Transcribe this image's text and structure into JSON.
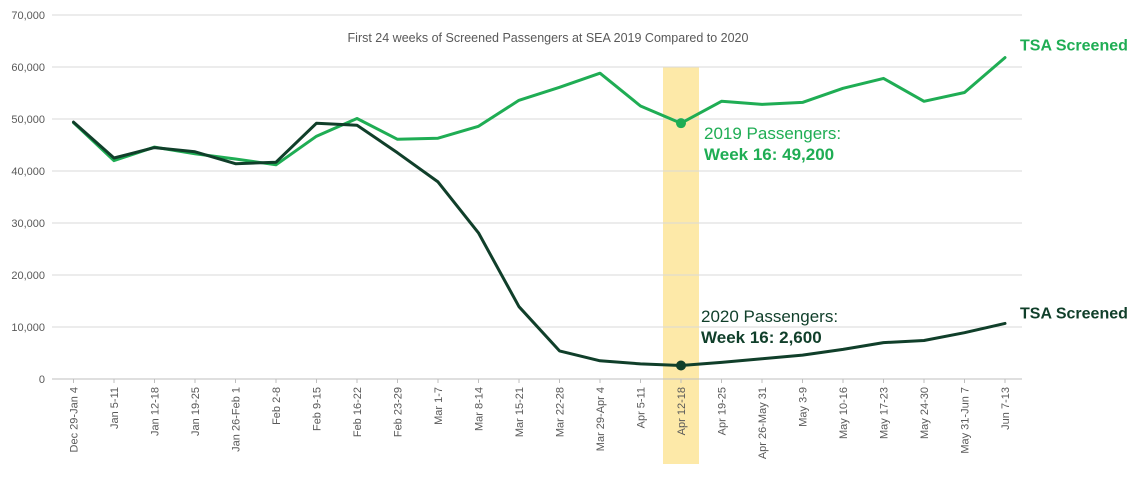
{
  "chart_data": {
    "type": "line",
    "title": "First 24 weeks of Screened Passengers at SEA 2019 Compared to 2020",
    "xlabel": "",
    "ylabel": "",
    "ylim": [
      0,
      70000
    ],
    "y_ticks": [
      "0",
      "10,000",
      "20,000",
      "30,000",
      "40,000",
      "50,000",
      "60,000",
      "70,000"
    ],
    "categories": [
      "Dec 29-Jan 4",
      "Jan 5-11",
      "Jan 12-18",
      "Jan 19-25",
      "Jan 26-Feb 1",
      "Feb 2-8",
      "Feb 9-15",
      "Feb 16-22",
      "Feb 23-29",
      "Mar 1-7",
      "Mar 8-14",
      "Mar 15-21",
      "Mar 22-28",
      "Mar 29-Apr 4",
      "Apr 5-11",
      "Apr 12-18",
      "Apr 19-25",
      "Apr 26-May 31",
      "May 3-9",
      "May 10-16",
      "May 17-23",
      "May 24-30",
      "May 31-Jun 7",
      "Jun 7-13"
    ],
    "series": [
      {
        "name": "TSA Screened",
        "year": "2019",
        "color": "#1fad54",
        "values": [
          49300,
          42000,
          44600,
          43300,
          42300,
          41200,
          46700,
          50100,
          46100,
          46300,
          48600,
          53600,
          56100,
          58800,
          52500,
          49200,
          53400,
          52800,
          53200,
          55900,
          57800,
          53400,
          55100,
          61800
        ]
      },
      {
        "name": "TSA Screened",
        "year": "2020",
        "color": "#103f2a",
        "values": [
          49400,
          42500,
          44500,
          43700,
          41400,
          41700,
          49200,
          48800,
          43500,
          37900,
          28100,
          13900,
          5400,
          3500,
          2900,
          2600,
          3200,
          3900,
          4600,
          5700,
          7000,
          7400,
          8900,
          10700
        ]
      }
    ],
    "highlight": {
      "category": "Apr 12-18",
      "color": "#fde9a8"
    },
    "annotations": [
      {
        "series": "2019",
        "line1": "2019 Passengers:",
        "line2": "Week 16: 49,200"
      },
      {
        "series": "2020",
        "line1": "2020 Passengers:",
        "line2": "Week 16: 2,600"
      }
    ],
    "grid": true
  }
}
